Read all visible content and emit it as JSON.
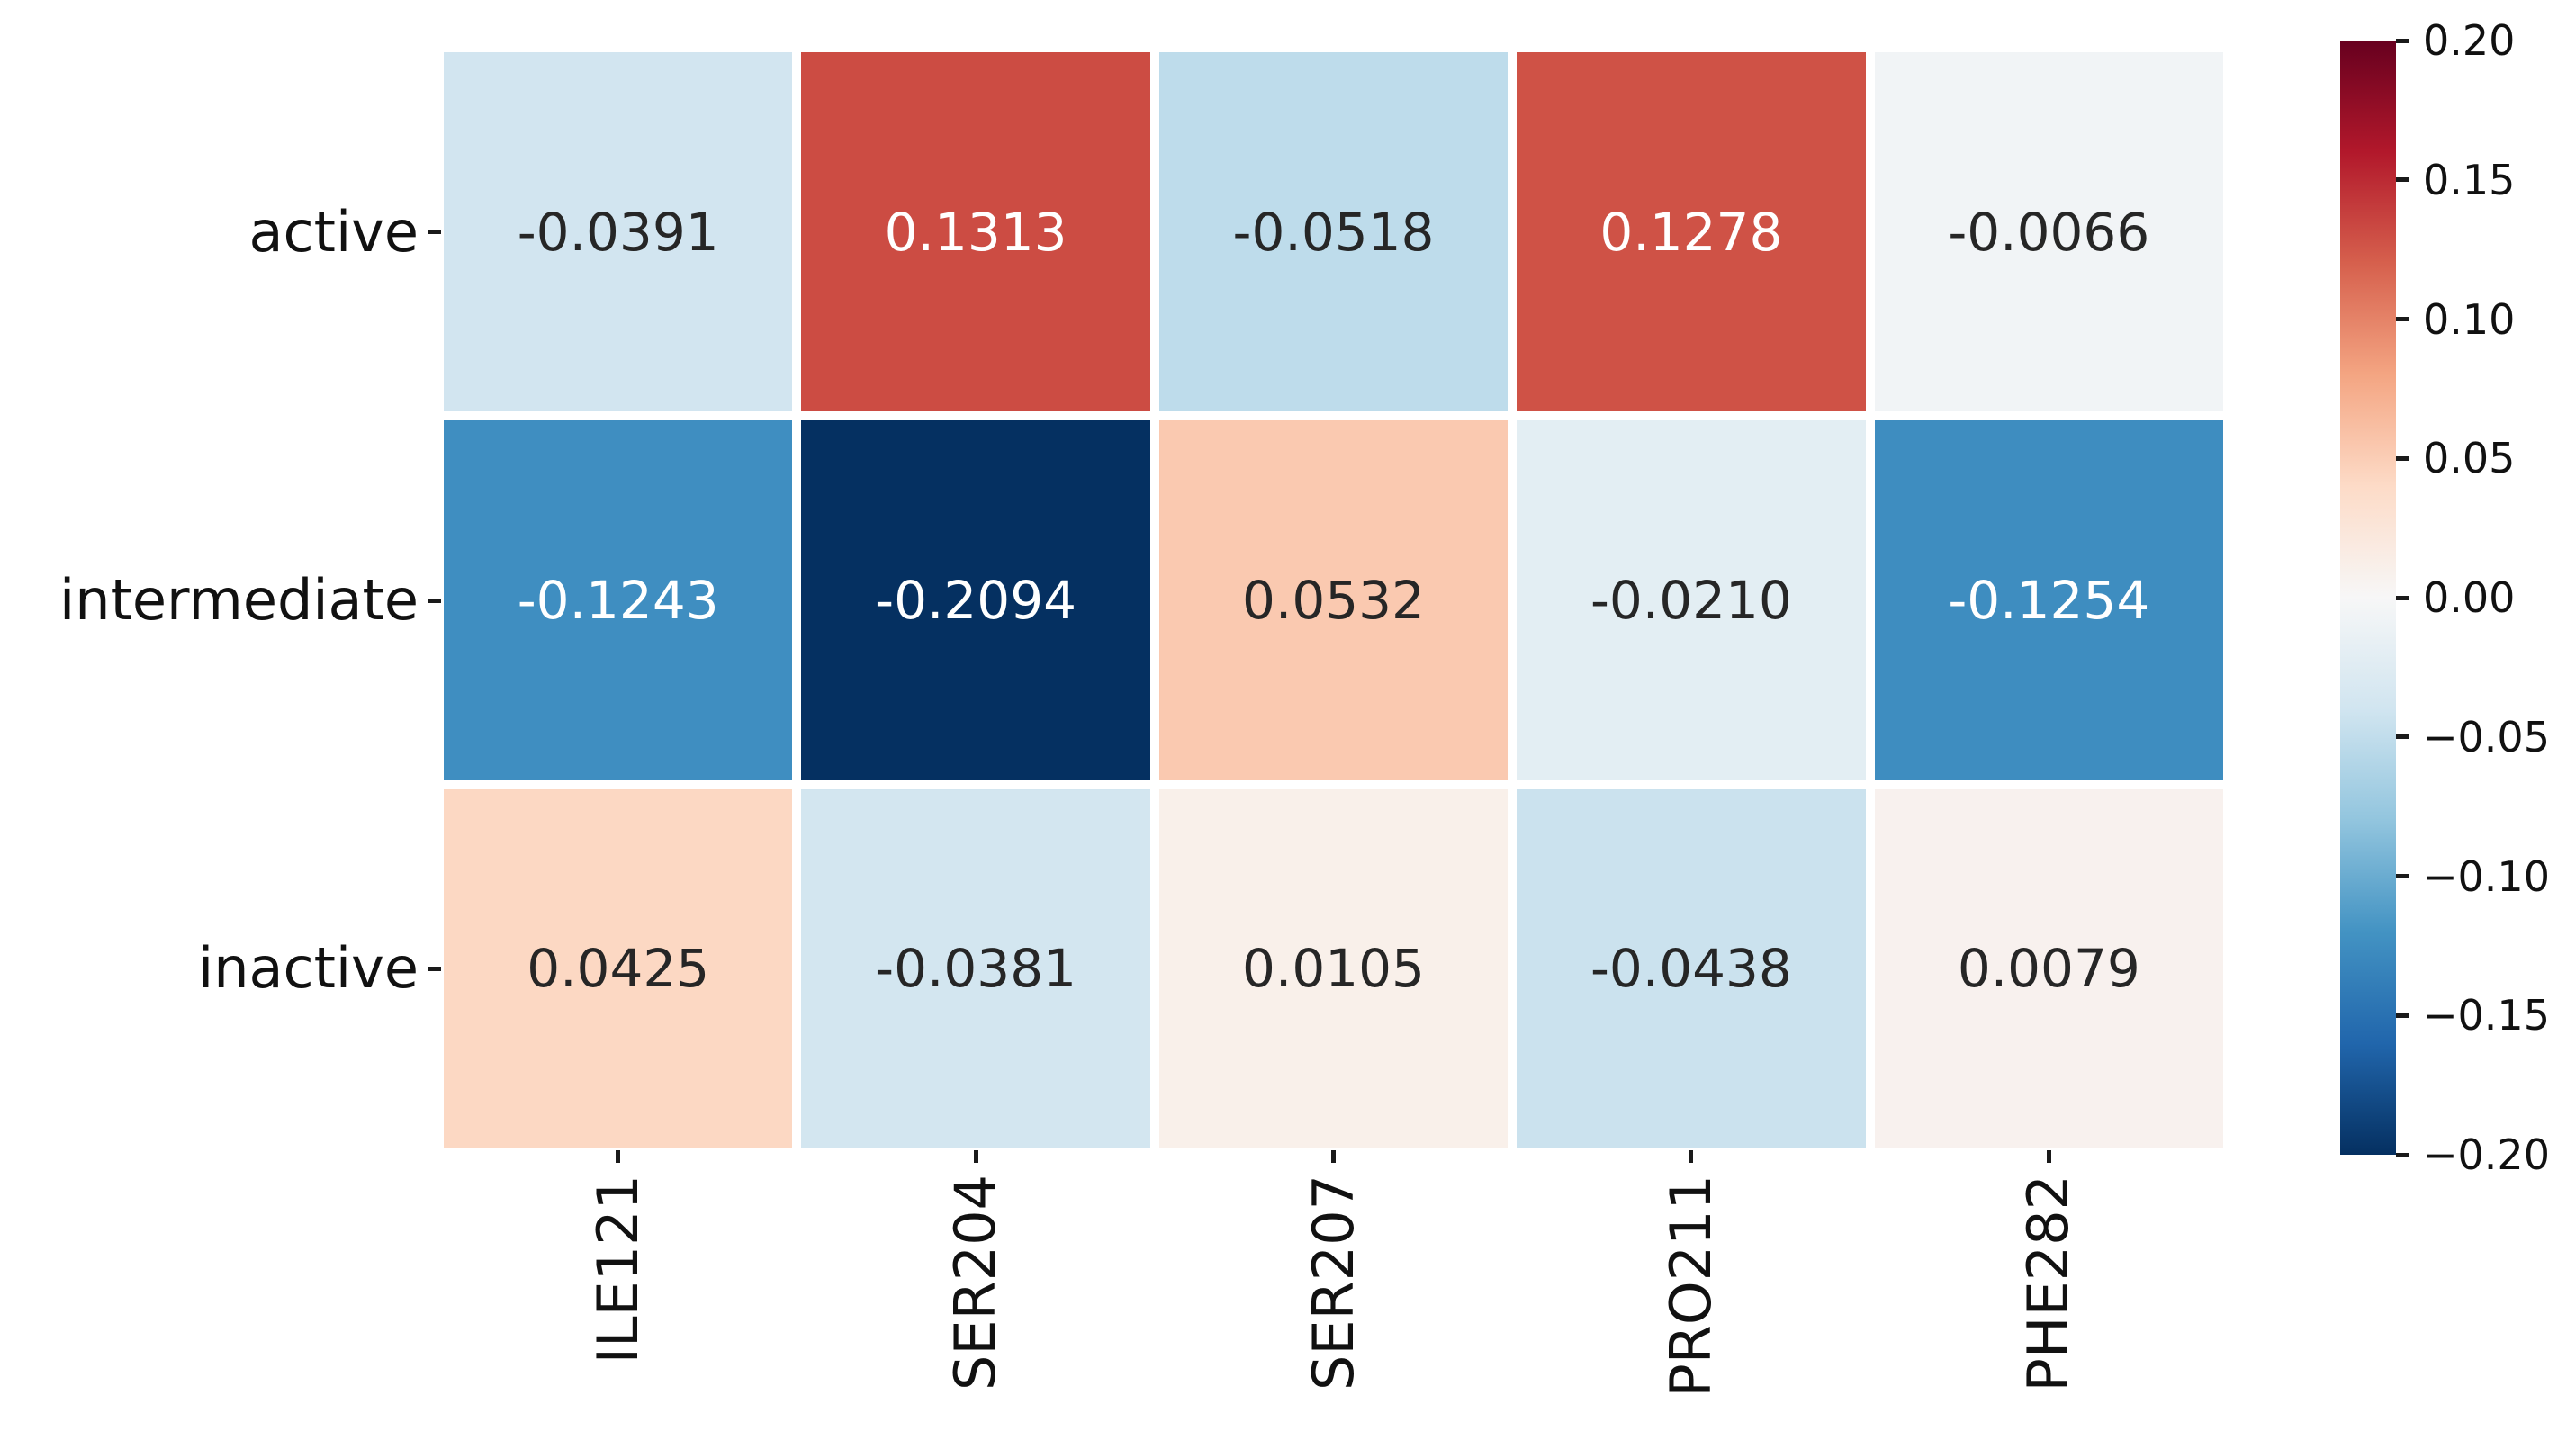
{
  "figure": {
    "background": "#ffffff"
  },
  "chart_data": {
    "type": "heatmap",
    "title": "",
    "xlabel": "",
    "ylabel": "",
    "rows": [
      "active",
      "intermediate",
      "inactive"
    ],
    "columns": [
      "ILE121",
      "SER204",
      "SER207",
      "PRO211",
      "PHE282"
    ],
    "values": [
      [
        -0.0391,
        0.1313,
        -0.0518,
        0.1278,
        -0.0066
      ],
      [
        -0.1243,
        -0.2094,
        0.0532,
        -0.021,
        -0.1254
      ],
      [
        0.0425,
        -0.0381,
        0.0105,
        -0.0438,
        0.0079
      ]
    ],
    "cell_labels": [
      [
        "-0.0391",
        "0.1313",
        "-0.0518",
        "0.1278",
        "-0.0066"
      ],
      [
        "-0.1243",
        "-0.2094",
        "0.0532",
        "-0.0210",
        "-0.1254"
      ],
      [
        "0.0425",
        "-0.0381",
        "0.0105",
        "-0.0438",
        "0.0079"
      ]
    ],
    "colormap": {
      "name": "RdBu_r",
      "vmin": -0.2,
      "vmax": 0.2,
      "anchors": [
        "#053061",
        "#2166ac",
        "#4393c3",
        "#92c5de",
        "#d1e5f0",
        "#f7f7f7",
        "#fddbc7",
        "#f4a582",
        "#d6604d",
        "#b2182b",
        "#67001f"
      ]
    },
    "colorbar": {
      "position": "right",
      "tick_labels": [
        "0.20",
        "0.15",
        "0.10",
        "0.05",
        "0.00",
        "−0.05",
        "−0.10",
        "−0.15",
        "−0.20"
      ]
    },
    "annotation_colors": {
      "dark": "#262626",
      "light": "#ffffff"
    },
    "cell_gap_color": "#ffffff",
    "grid": false,
    "legend": null
  }
}
